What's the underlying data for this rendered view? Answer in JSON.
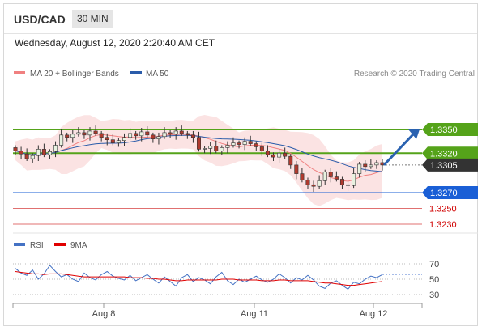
{
  "header": {
    "pair": "USD/CAD",
    "timeframe": "30 MIN"
  },
  "datetime": "Wednesday, August 12, 2020 2:20:40 AM CET",
  "legend_top": [
    {
      "label": "MA 20 + Bollinger Bands",
      "color": "#f08080"
    },
    {
      "label": "MA 50",
      "color": "#2a5caa"
    }
  ],
  "credit": "Research © 2020 Trading Central",
  "legend_bottom": [
    {
      "label": "RSI",
      "color": "#4472c4"
    },
    {
      "label": "9MA",
      "color": "#e00000"
    }
  ],
  "colors": {
    "green": "#55a31a",
    "blue": "#1a5fd6",
    "red": "#e07070",
    "dark": "#333333",
    "arrow": "#2a62b0"
  },
  "chart_data": [
    {
      "type": "candlestick",
      "x_ticks": [
        "Aug 8",
        "Aug 11",
        "Aug 12"
      ],
      "ylim": [
        1.3215,
        1.3375
      ],
      "levels": [
        {
          "value": 1.335,
          "label": "1.3350",
          "kind": "resistance"
        },
        {
          "value": 1.332,
          "label": "1.3320",
          "kind": "resistance"
        },
        {
          "value": 1.3305,
          "label": "1.3305",
          "kind": "last"
        },
        {
          "value": 1.327,
          "label": "1.3270",
          "kind": "pivot"
        },
        {
          "value": 1.325,
          "label": "1.3250",
          "kind": "support"
        },
        {
          "value": 1.323,
          "label": "1.3230",
          "kind": "support"
        }
      ],
      "close": [
        1.3323,
        1.3319,
        1.3313,
        1.3317,
        1.3325,
        1.3318,
        1.3322,
        1.333,
        1.3343,
        1.334,
        1.3344,
        1.3346,
        1.3343,
        1.3348,
        1.3345,
        1.334,
        1.3337,
        1.3333,
        1.3336,
        1.334,
        1.3345,
        1.3342,
        1.3347,
        1.3343,
        1.3338,
        1.3341,
        1.3346,
        1.3344,
        1.3348,
        1.3345,
        1.3343,
        1.334,
        1.3325,
        1.3326,
        1.3329,
        1.3323,
        1.3327,
        1.333,
        1.3333,
        1.3331,
        1.3335,
        1.3332,
        1.3328,
        1.3323,
        1.3318,
        1.3315,
        1.332,
        1.3316,
        1.3305,
        1.3294,
        1.3286,
        1.328,
        1.3278,
        1.3285,
        1.3296,
        1.329,
        1.3287,
        1.328,
        1.3279,
        1.3294,
        1.3306,
        1.3303,
        1.3305,
        1.3308,
        1.3305
      ]
    },
    {
      "type": "line",
      "title": "RSI",
      "ylim": [
        20,
        80
      ],
      "y_ticks": [
        70,
        50,
        30
      ],
      "series": [
        {
          "name": "RSI",
          "values": [
            64,
            58,
            55,
            62,
            50,
            57,
            68,
            60,
            53,
            56,
            50,
            47,
            58,
            52,
            49,
            56,
            60,
            54,
            51,
            49,
            55,
            48,
            52,
            56,
            50,
            45,
            53,
            47,
            41,
            52,
            56,
            47,
            52,
            49,
            44,
            53,
            59,
            48,
            43,
            50,
            46,
            50,
            54,
            49,
            46,
            50,
            57,
            52,
            45,
            52,
            49,
            55,
            49,
            41,
            38,
            45,
            48,
            42,
            37,
            46,
            44,
            50,
            54,
            52,
            56
          ]
        },
        {
          "name": "9MA",
          "values": [
            60,
            59,
            58,
            57,
            57,
            56,
            57,
            57,
            57,
            56,
            55,
            54,
            53,
            53,
            53,
            53,
            53,
            53,
            53,
            53,
            52,
            52,
            52,
            51,
            51,
            50,
            50,
            49,
            48,
            48,
            49,
            49,
            49,
            49,
            49,
            49,
            50,
            50,
            50,
            49,
            49,
            49,
            49,
            48,
            48,
            48,
            49,
            49,
            48,
            48,
            48,
            48,
            47,
            46,
            45,
            45,
            44,
            43,
            42,
            42,
            43,
            44,
            45,
            46,
            47
          ]
        }
      ]
    }
  ]
}
